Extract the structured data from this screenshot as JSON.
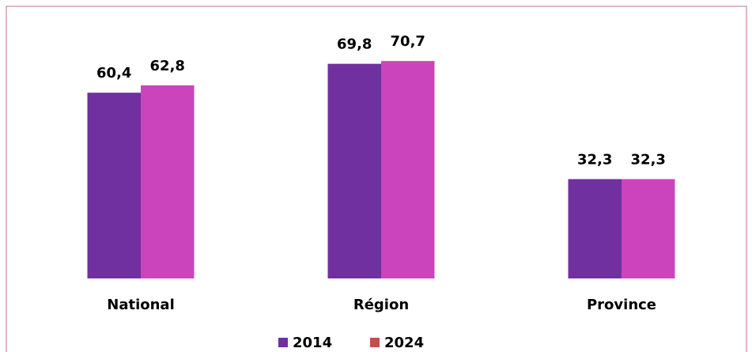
{
  "chart_data": {
    "type": "bar",
    "categories": [
      "National",
      "Région",
      "Province"
    ],
    "series": [
      {
        "name": "2014",
        "color": "#7030a0",
        "legend_color": "#7030a0",
        "values": [
          60.4,
          69.8,
          32.3
        ],
        "value_labels": [
          "60,4",
          "69,8",
          "32,3"
        ]
      },
      {
        "name": "2024",
        "color": "#cc44bb",
        "legend_color": "#c0504d",
        "values": [
          62.8,
          70.7,
          32.3
        ],
        "value_labels": [
          "62,8",
          "70,7",
          "32,3"
        ]
      }
    ],
    "ylim": [
      0,
      80
    ],
    "legend": "bottom"
  }
}
